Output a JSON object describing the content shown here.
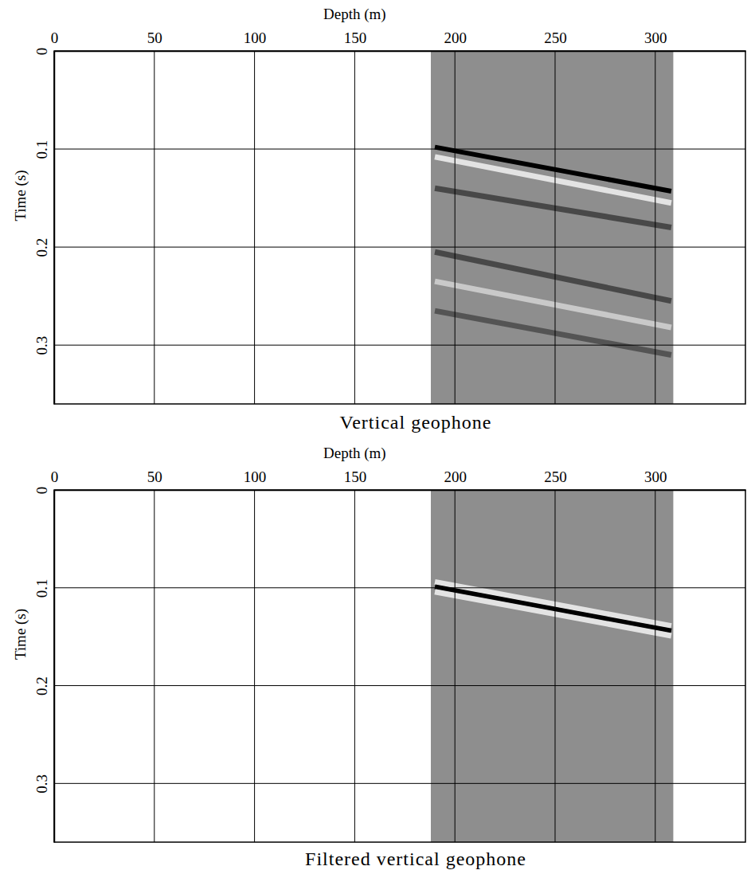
{
  "chart_data": [
    {
      "type": "line",
      "title": "Vertical geophone",
      "x_label": "Depth (m)",
      "y_label": "Time (s)",
      "xlim": [
        0,
        345
      ],
      "ylim": [
        0,
        0.36
      ],
      "xticks": [
        0,
        50,
        100,
        150,
        200,
        250,
        300
      ],
      "yticks": [
        0,
        0.1,
        0.2,
        0.3
      ],
      "grid": true,
      "data_depth": [
        188,
        309
      ],
      "x": [
        190,
        308
      ],
      "series": [
        {
          "color": "#000000",
          "values": [
            0.098,
            0.143
          ]
        },
        {
          "color": "#f2f2f2",
          "values": [
            0.108,
            0.155
          ]
        },
        {
          "color": "#3c3c3c",
          "values": [
            0.14,
            0.18
          ]
        },
        {
          "color": "#3c3c3c",
          "values": [
            0.205,
            0.255
          ]
        },
        {
          "color": "#d4d4d4",
          "values": [
            0.235,
            0.282
          ]
        },
        {
          "color": "#4a4a4a",
          "values": [
            0.265,
            0.31
          ]
        }
      ]
    },
    {
      "type": "line",
      "title": "Filtered vertical geophone",
      "x_label": "Depth (m)",
      "y_label": "Time (s)",
      "xlim": [
        0,
        345
      ],
      "ylim": [
        0,
        0.36
      ],
      "xticks": [
        0,
        50,
        100,
        150,
        200,
        250,
        300
      ],
      "yticks": [
        0,
        0.1,
        0.2,
        0.3
      ],
      "grid": true,
      "data_depth": [
        188,
        309
      ],
      "x": [
        190,
        308
      ],
      "series": [
        {
          "color": "#f2f2f2",
          "values": [
            0.094,
            0.139
          ]
        },
        {
          "color": "#000000",
          "values": [
            0.099,
            0.144
          ]
        },
        {
          "color": "#f2f2f2",
          "values": [
            0.104,
            0.149
          ]
        }
      ]
    }
  ]
}
